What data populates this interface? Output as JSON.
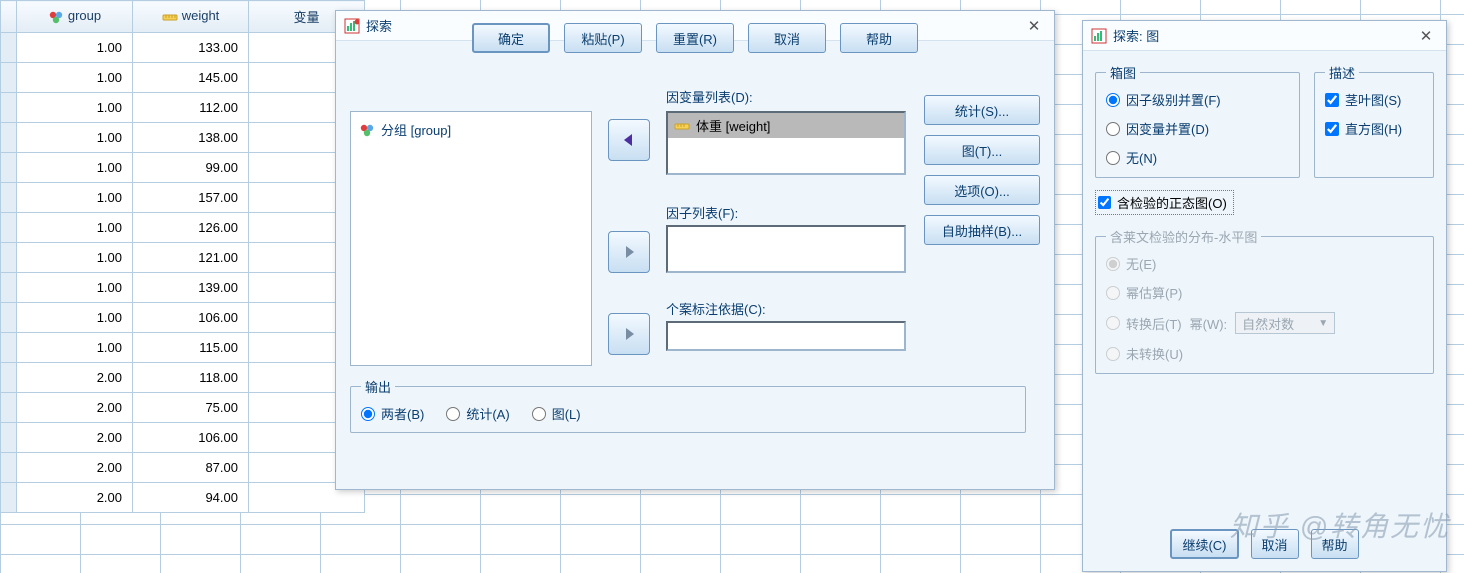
{
  "sheet": {
    "columns": [
      "group",
      "weight",
      "变量"
    ],
    "rows": [
      [
        "1.00",
        "133.00"
      ],
      [
        "1.00",
        "145.00"
      ],
      [
        "1.00",
        "112.00"
      ],
      [
        "1.00",
        "138.00"
      ],
      [
        "1.00",
        "99.00"
      ],
      [
        "1.00",
        "157.00"
      ],
      [
        "1.00",
        "126.00"
      ],
      [
        "1.00",
        "121.00"
      ],
      [
        "1.00",
        "139.00"
      ],
      [
        "1.00",
        "106.00"
      ],
      [
        "1.00",
        "115.00"
      ],
      [
        "2.00",
        "118.00"
      ],
      [
        "2.00",
        "75.00"
      ],
      [
        "2.00",
        "106.00"
      ],
      [
        "2.00",
        "87.00"
      ],
      [
        "2.00",
        "94.00"
      ]
    ]
  },
  "mainDialog": {
    "title": "探索",
    "sourceVars": [
      {
        "label": "分组 [group]",
        "type": "nominal"
      }
    ],
    "labels": {
      "dependent": "因变量列表(D):",
      "factor": "因子列表(F):",
      "caseLabel": "个案标注依据(C):"
    },
    "dependentItems": [
      {
        "label": "体重 [weight]",
        "type": "scale"
      }
    ],
    "sideButtons": {
      "stats": "统计(S)...",
      "plots": "图(T)...",
      "options": "选项(O)...",
      "bootstrap": "自助抽样(B)..."
    },
    "output": {
      "legend": "输出",
      "both": "两者(B)",
      "stats": "统计(A)",
      "plots": "图(L)",
      "selected": "both"
    },
    "bottom": {
      "ok": "确定",
      "paste": "粘贴(P)",
      "reset": "重置(R)",
      "cancel": "取消",
      "help": "帮助"
    }
  },
  "plotsDialog": {
    "title": "探索: 图",
    "boxplot": {
      "legend": "箱图",
      "factorLevels": "因子级别并置(F)",
      "depTogether": "因变量并置(D)",
      "none": "无(N)",
      "selected": "factorLevels"
    },
    "descriptive": {
      "legend": "描述",
      "stemleaf": "茎叶图(S)",
      "hist": "直方图(H)",
      "stemleaf_checked": true,
      "hist_checked": true
    },
    "normality": {
      "label": "含检验的正态图(O)",
      "checked": true
    },
    "levene": {
      "legend": "含莱文检验的分布-水平图",
      "none": "无(E)",
      "power": "幂估算(P)",
      "transformed": "转换后(T)",
      "powerLabel": "幂(W):",
      "untransformed": "未转换(U)",
      "select_value": "自然对数"
    },
    "bottom": {
      "continue": "继续(C)",
      "cancel": "取消",
      "help": "帮助"
    }
  },
  "watermark": "知乎 @转角无忧",
  "colors": {
    "border": "#b5cde0",
    "dialog_bg": "#eef5fb",
    "btn_grad_top": "#f3f9ff",
    "btn_grad_bot": "#c8dff2",
    "btn_border": "#6b95c1",
    "text_blue": "#0b3e6f"
  }
}
